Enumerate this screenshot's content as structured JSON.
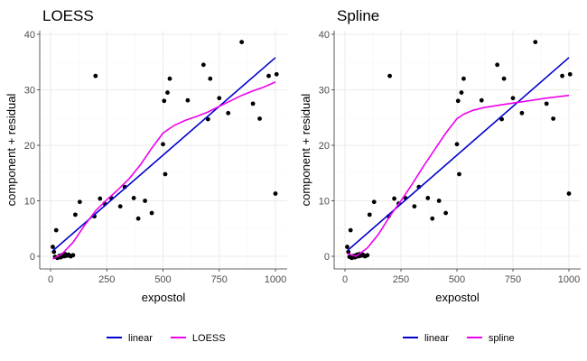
{
  "chart_data": [
    {
      "type": "scatter",
      "title": "LOESS",
      "xlabel": "expostol",
      "ylabel": "component + residual",
      "xlim": [
        0,
        1000
      ],
      "ylim": [
        0,
        40
      ],
      "xticks": [
        0,
        250,
        500,
        750,
        1000
      ],
      "yticks": [
        0,
        10,
        20,
        30,
        40
      ],
      "grid": true,
      "legend_position": "bottom",
      "points": [
        [
          10,
          1.7
        ],
        [
          15,
          0.8
        ],
        [
          20,
          -0.1
        ],
        [
          25,
          4.7
        ],
        [
          30,
          -0.3
        ],
        [
          35,
          -0.2
        ],
        [
          40,
          0.1
        ],
        [
          45,
          -0.2
        ],
        [
          50,
          0.2
        ],
        [
          55,
          0.3
        ],
        [
          60,
          0
        ],
        [
          65,
          0.4
        ],
        [
          70,
          0.1
        ],
        [
          80,
          0.3
        ],
        [
          85,
          0.1
        ],
        [
          90,
          0
        ],
        [
          100,
          0.2
        ],
        [
          110,
          7.5
        ],
        [
          130,
          9.8
        ],
        [
          195,
          7.2
        ],
        [
          200,
          32.5
        ],
        [
          220,
          10.4
        ],
        [
          240,
          9.5
        ],
        [
          270,
          10.5
        ],
        [
          310,
          9
        ],
        [
          330,
          12.5
        ],
        [
          370,
          10.5
        ],
        [
          390,
          6.8
        ],
        [
          420,
          10
        ],
        [
          450,
          7.8
        ],
        [
          500,
          20.2
        ],
        [
          505,
          28
        ],
        [
          510,
          14.8
        ],
        [
          520,
          29.5
        ],
        [
          530,
          32
        ],
        [
          610,
          28.1
        ],
        [
          680,
          34.5
        ],
        [
          700,
          24.7
        ],
        [
          710,
          32
        ],
        [
          750,
          28.5
        ],
        [
          790,
          25.8
        ],
        [
          850,
          38.6
        ],
        [
          900,
          27.5
        ],
        [
          930,
          24.8
        ],
        [
          970,
          32.5
        ],
        [
          1000,
          11.3
        ],
        [
          1005,
          32.8
        ]
      ],
      "series": [
        {
          "name": "linear",
          "color": "#0000cd",
          "x": [
            10,
            1000
          ],
          "y": [
            1,
            35.8
          ]
        },
        {
          "name": "LOESS",
          "color": "#ee00ee",
          "x": [
            10,
            50,
            100,
            150,
            200,
            250,
            300,
            350,
            400,
            450,
            500,
            550,
            600,
            650,
            700,
            750,
            800,
            850,
            900,
            950,
            1000
          ],
          "y": [
            -0.5,
            0.4,
            2.5,
            5.5,
            8.2,
            10.2,
            12,
            14,
            16.5,
            19.5,
            22.2,
            23.6,
            24.5,
            25.2,
            26,
            27,
            28,
            29,
            29.8,
            30.5,
            31.4
          ]
        }
      ]
    },
    {
      "type": "scatter",
      "title": "Spline",
      "xlabel": "expostol",
      "ylabel": "component + residual",
      "xlim": [
        0,
        1000
      ],
      "ylim": [
        0,
        40
      ],
      "xticks": [
        0,
        250,
        500,
        750,
        1000
      ],
      "yticks": [
        0,
        10,
        20,
        30,
        40
      ],
      "grid": true,
      "legend_position": "bottom",
      "points": [
        [
          10,
          1.7
        ],
        [
          15,
          0.8
        ],
        [
          20,
          -0.1
        ],
        [
          25,
          4.7
        ],
        [
          30,
          -0.3
        ],
        [
          35,
          -0.2
        ],
        [
          40,
          0.1
        ],
        [
          45,
          -0.2
        ],
        [
          50,
          0.2
        ],
        [
          55,
          0.3
        ],
        [
          60,
          0
        ],
        [
          65,
          0.4
        ],
        [
          70,
          0.1
        ],
        [
          80,
          0.3
        ],
        [
          85,
          0.1
        ],
        [
          90,
          0
        ],
        [
          100,
          0.2
        ],
        [
          110,
          7.5
        ],
        [
          130,
          9.8
        ],
        [
          195,
          7.2
        ],
        [
          200,
          32.5
        ],
        [
          220,
          10.4
        ],
        [
          240,
          9.5
        ],
        [
          270,
          10.5
        ],
        [
          310,
          9
        ],
        [
          330,
          12.5
        ],
        [
          370,
          10.5
        ],
        [
          390,
          6.8
        ],
        [
          420,
          10
        ],
        [
          450,
          7.8
        ],
        [
          500,
          20.2
        ],
        [
          505,
          28
        ],
        [
          510,
          14.8
        ],
        [
          520,
          29.5
        ],
        [
          530,
          32
        ],
        [
          610,
          28.1
        ],
        [
          680,
          34.5
        ],
        [
          700,
          24.7
        ],
        [
          710,
          32
        ],
        [
          750,
          28.5
        ],
        [
          790,
          25.8
        ],
        [
          850,
          38.6
        ],
        [
          900,
          27.5
        ],
        [
          930,
          24.8
        ],
        [
          970,
          32.5
        ],
        [
          1000,
          11.3
        ],
        [
          1005,
          32.8
        ]
      ],
      "series": [
        {
          "name": "linear",
          "color": "#0000cd",
          "x": [
            10,
            1000
          ],
          "y": [
            1,
            35.8
          ]
        },
        {
          "name": "spline",
          "color": "#ee00ee",
          "x": [
            10,
            50,
            100,
            150,
            200,
            250,
            300,
            350,
            400,
            450,
            500,
            530,
            570,
            620,
            700,
            800,
            900,
            1000
          ],
          "y": [
            0.5,
            0,
            1.5,
            4,
            7.2,
            10,
            13,
            16.2,
            19.2,
            22.2,
            24.8,
            25.6,
            26.3,
            26.8,
            27.3,
            27.9,
            28.5,
            29
          ]
        }
      ]
    }
  ]
}
